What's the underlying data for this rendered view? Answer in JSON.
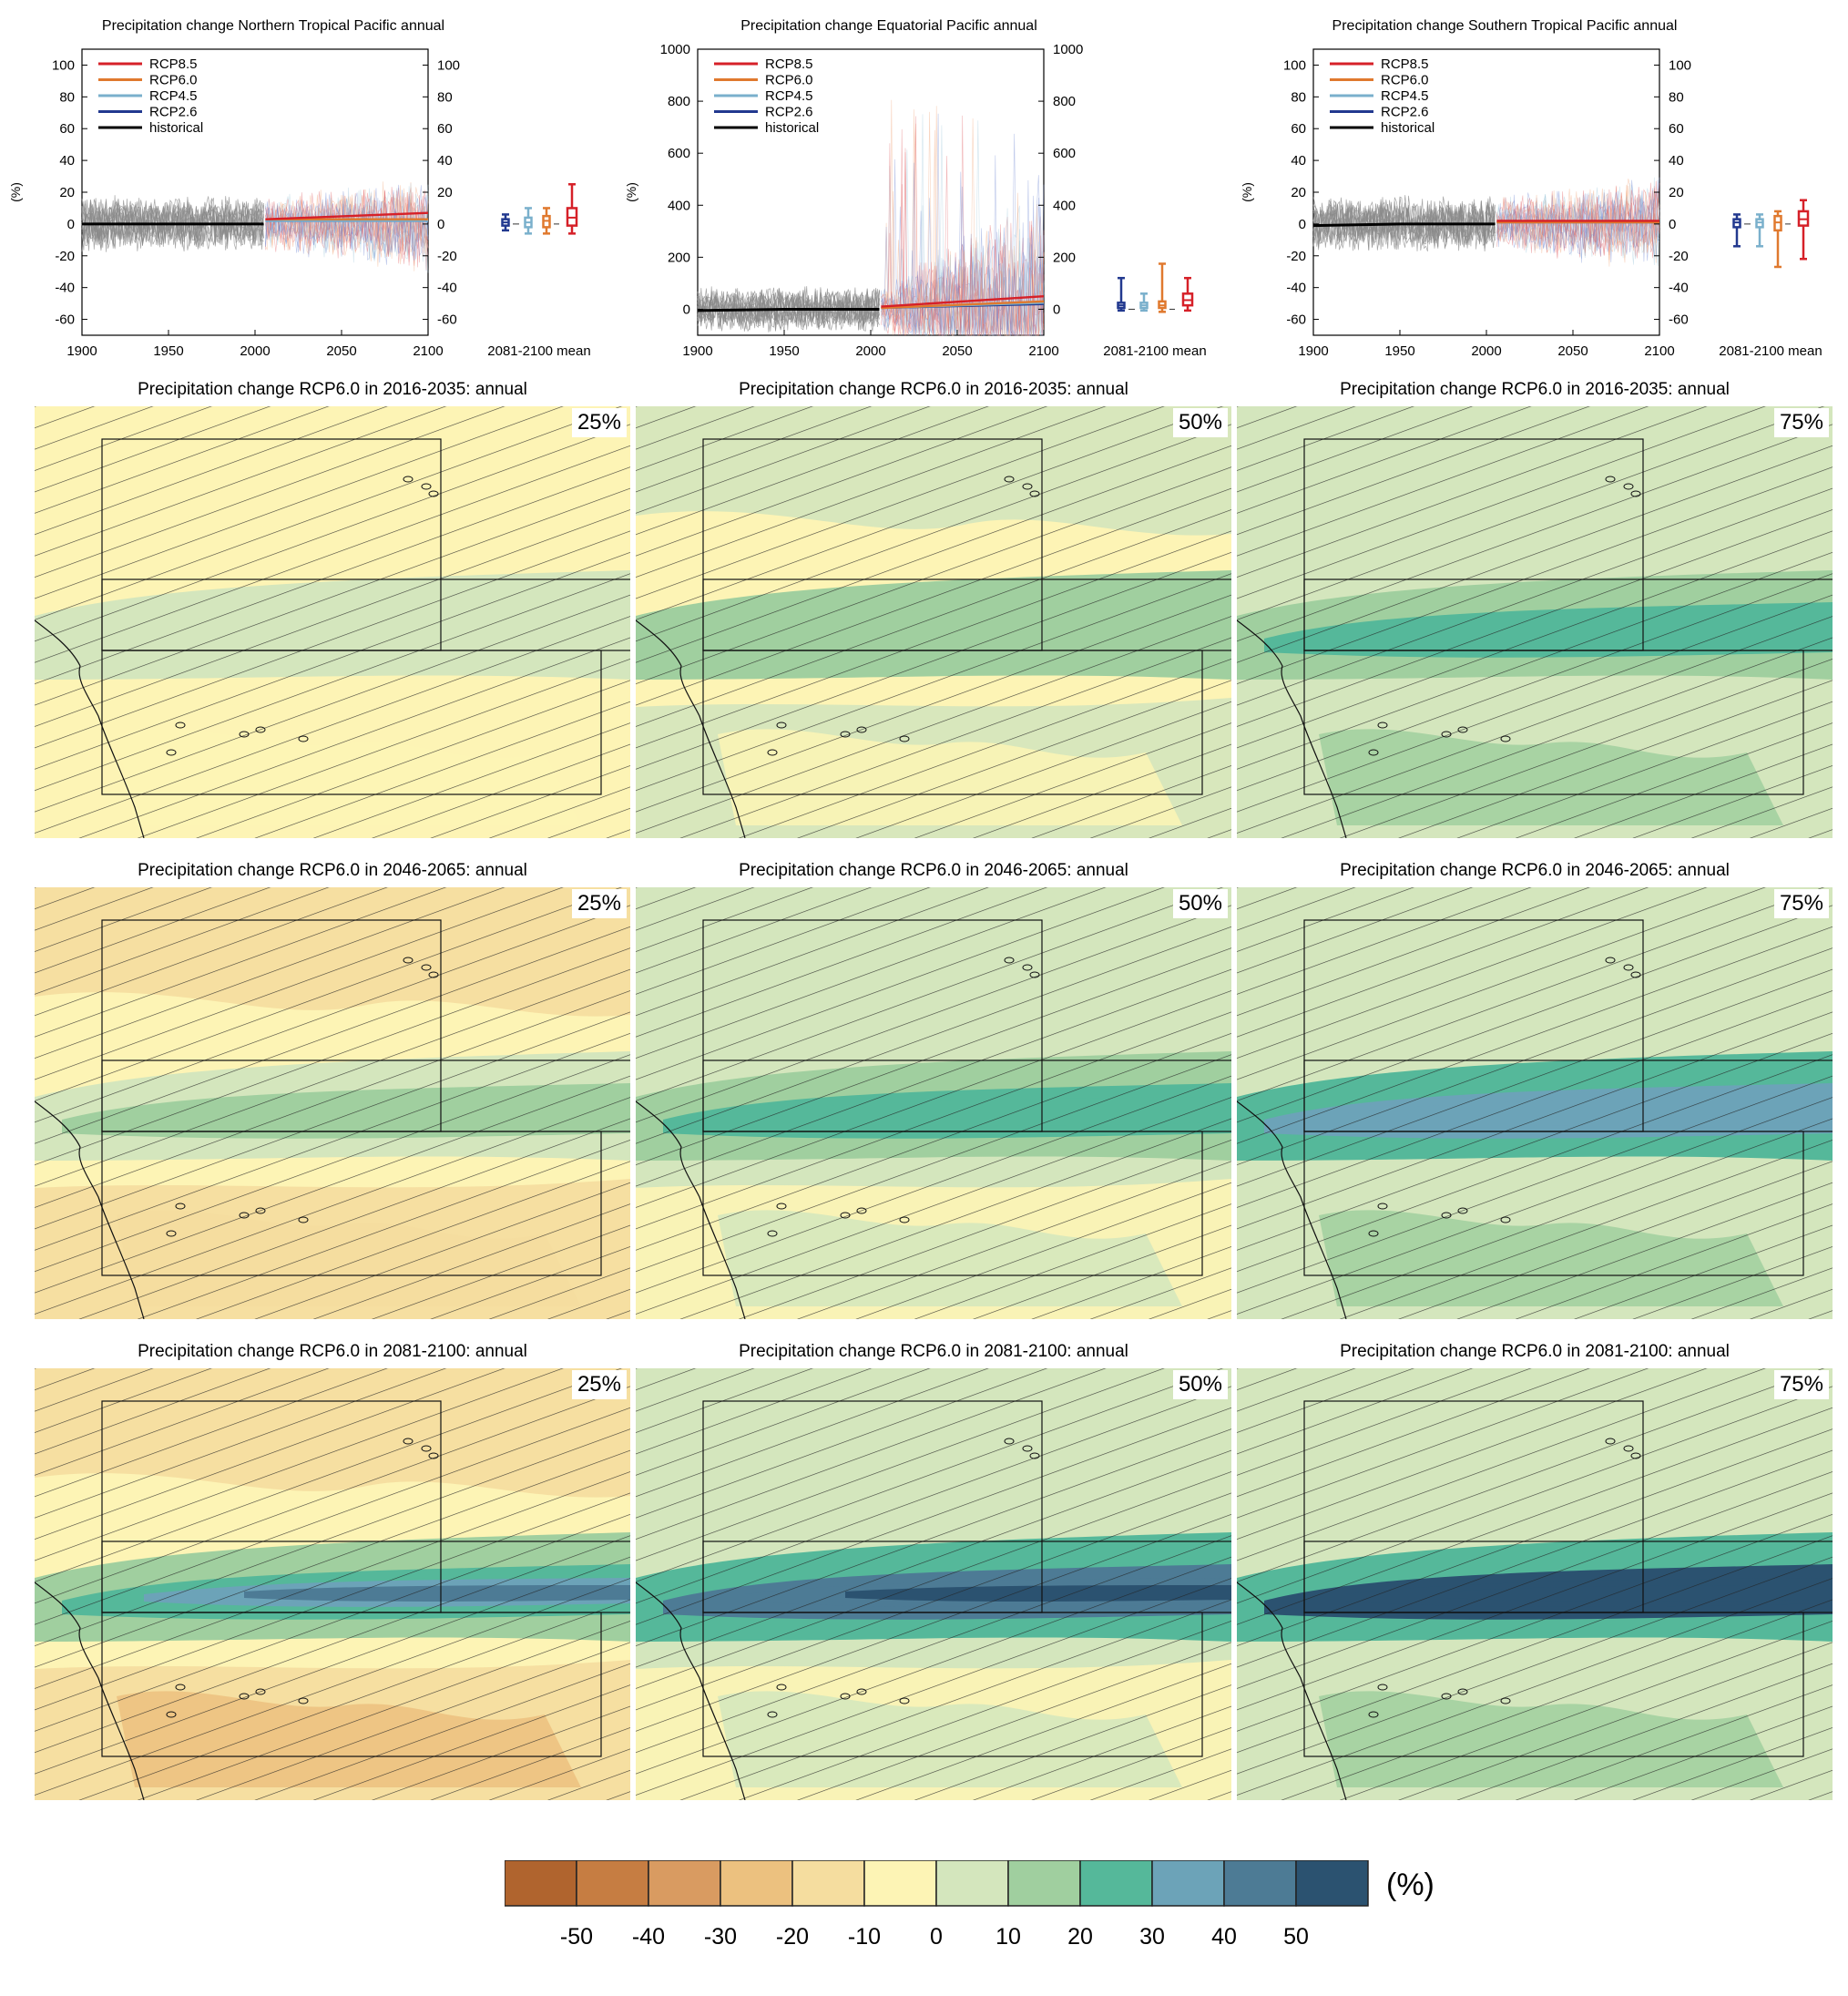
{
  "colorbar": {
    "unit": "(%)",
    "ticks": [
      "-50",
      "-40",
      "-30",
      "-20",
      "-10",
      "0",
      "10",
      "20",
      "30",
      "40",
      "50"
    ],
    "colors": [
      "#b0642e",
      "#c67d42",
      "#d99b61",
      "#ecc17f",
      "#f5dd9f",
      "#fdf4b5",
      "#d4e6bd",
      "#a0cf9f",
      "#55b89a",
      "#6ca3b8",
      "#4d7b95",
      "#2b5270"
    ]
  },
  "timeseries": [
    {
      "title": "Precipitation change Northern Tropical Pacific annual",
      "ylabel": "(%)",
      "yticks": [
        "100",
        "80",
        "60",
        "40",
        "20",
        "0",
        "-20",
        "-40",
        "-60"
      ],
      "xticks": [
        "1900",
        "1950",
        "2000",
        "2050",
        "2100"
      ],
      "boxlabel": "2081-2100 mean",
      "legend": [
        "RCP8.5",
        "RCP6.0",
        "RCP4.5",
        "RCP2.6",
        "historical"
      ]
    },
    {
      "title": "Precipitation change Equatorial Pacific annual",
      "ylabel": "(%)",
      "yticks": [
        "1000",
        "800",
        "600",
        "400",
        "200",
        "0"
      ],
      "xticks": [
        "1900",
        "1950",
        "2000",
        "2050",
        "2100"
      ],
      "boxlabel": "2081-2100 mean",
      "legend": [
        "RCP8.5",
        "RCP6.0",
        "RCP4.5",
        "RCP2.6",
        "historical"
      ]
    },
    {
      "title": "Precipitation change Southern Tropical Pacific annual",
      "ylabel": "(%)",
      "yticks": [
        "100",
        "80",
        "60",
        "40",
        "20",
        "0",
        "-20",
        "-40",
        "-60"
      ],
      "xticks": [
        "1900",
        "1950",
        "2000",
        "2050",
        "2100"
      ],
      "boxlabel": "2081-2100 mean",
      "legend": [
        "RCP8.5",
        "RCP6.0",
        "RCP4.5",
        "RCP2.6",
        "historical"
      ]
    }
  ],
  "maps": [
    [
      {
        "title": "Precipitation change RCP6.0 in 2016-2035: annual",
        "pct": "25%"
      },
      {
        "title": "Precipitation change RCP6.0 in 2016-2035: annual",
        "pct": "50%"
      },
      {
        "title": "Precipitation change RCP6.0 in 2016-2035: annual",
        "pct": "75%"
      }
    ],
    [
      {
        "title": "Precipitation change RCP6.0 in 2046-2065: annual",
        "pct": "25%"
      },
      {
        "title": "Precipitation change RCP6.0 in 2046-2065: annual",
        "pct": "50%"
      },
      {
        "title": "Precipitation change RCP6.0 in 2046-2065: annual",
        "pct": "75%"
      }
    ],
    [
      {
        "title": "Precipitation change RCP6.0 in 2081-2100: annual",
        "pct": "25%"
      },
      {
        "title": "Precipitation change RCP6.0 in 2081-2100: annual",
        "pct": "50%"
      },
      {
        "title": "Precipitation change RCP6.0 in 2081-2100: annual",
        "pct": "75%"
      }
    ]
  ],
  "chart_data": [
    {
      "type": "line",
      "title": "Precipitation change Northern Tropical Pacific annual",
      "ylabel": "(%)",
      "xlim": [
        1900,
        2100
      ],
      "ylim": [
        -70,
        110
      ],
      "series": [
        {
          "name": "historical",
          "x": [
            1900,
            1950,
            2005
          ],
          "y": [
            0,
            0,
            0
          ],
          "color": "#000000"
        },
        {
          "name": "RCP2.6",
          "x": [
            2006,
            2100
          ],
          "y": [
            2,
            2
          ],
          "color": "#22398f"
        },
        {
          "name": "RCP4.5",
          "x": [
            2006,
            2100
          ],
          "y": [
            2,
            2
          ],
          "color": "#7ab0cc"
        },
        {
          "name": "RCP6.0",
          "x": [
            2006,
            2100
          ],
          "y": [
            3,
            3
          ],
          "color": "#e0792e"
        },
        {
          "name": "RCP8.5",
          "x": [
            2006,
            2100
          ],
          "y": [
            3,
            7
          ],
          "color": "#d62028"
        }
      ],
      "boxes_2081_2100_mean": [
        {
          "name": "RCP2.6",
          "min": -4,
          "q1": -1,
          "median": 1,
          "q3": 3,
          "max": 6
        },
        {
          "name": "RCP4.5",
          "min": -6,
          "q1": -2,
          "median": 1,
          "q3": 4,
          "max": 10
        },
        {
          "name": "RCP6.0",
          "min": -6,
          "q1": -2,
          "median": 2,
          "q3": 5,
          "max": 10
        },
        {
          "name": "RCP8.5",
          "min": -6,
          "q1": -1,
          "median": 4,
          "q3": 10,
          "max": 25
        }
      ]
    },
    {
      "type": "line",
      "title": "Precipitation change Equatorial Pacific annual",
      "ylabel": "(%)",
      "xlim": [
        1900,
        2100
      ],
      "ylim": [
        -100,
        1000
      ],
      "series": [
        {
          "name": "historical",
          "x": [
            1900,
            1950,
            2005
          ],
          "y": [
            -5,
            0,
            0
          ],
          "color": "#000000"
        },
        {
          "name": "RCP2.6",
          "x": [
            2006,
            2100
          ],
          "y": [
            5,
            20
          ],
          "color": "#22398f"
        },
        {
          "name": "RCP4.5",
          "x": [
            2006,
            2100
          ],
          "y": [
            5,
            25
          ],
          "color": "#7ab0cc"
        },
        {
          "name": "RCP6.0",
          "x": [
            2006,
            2100
          ],
          "y": [
            5,
            30
          ],
          "color": "#e0792e"
        },
        {
          "name": "RCP8.5",
          "x": [
            2006,
            2100
          ],
          "y": [
            10,
            50
          ],
          "color": "#d62028"
        }
      ],
      "boxes_2081_2100_mean": [
        {
          "name": "RCP2.6",
          "min": -5,
          "q1": 5,
          "median": 15,
          "q3": 25,
          "max": 120
        },
        {
          "name": "RCP4.5",
          "min": -5,
          "q1": 5,
          "median": 15,
          "q3": 25,
          "max": 60
        },
        {
          "name": "RCP6.0",
          "min": -10,
          "q1": 5,
          "median": 15,
          "q3": 30,
          "max": 175
        },
        {
          "name": "RCP8.5",
          "min": -5,
          "q1": 15,
          "median": 35,
          "q3": 60,
          "max": 120
        }
      ]
    },
    {
      "type": "line",
      "title": "Precipitation change Southern Tropical Pacific annual",
      "ylabel": "(%)",
      "xlim": [
        1900,
        2100
      ],
      "ylim": [
        -70,
        110
      ],
      "series": [
        {
          "name": "historical",
          "x": [
            1900,
            1950,
            2005
          ],
          "y": [
            -1,
            0,
            0
          ],
          "color": "#000000"
        },
        {
          "name": "RCP2.6",
          "x": [
            2006,
            2100
          ],
          "y": [
            1,
            1
          ],
          "color": "#22398f"
        },
        {
          "name": "RCP4.5",
          "x": [
            2006,
            2100
          ],
          "y": [
            1,
            1
          ],
          "color": "#7ab0cc"
        },
        {
          "name": "RCP6.0",
          "x": [
            2006,
            2100
          ],
          "y": [
            1,
            1
          ],
          "color": "#e0792e"
        },
        {
          "name": "RCP8.5",
          "x": [
            2006,
            2100
          ],
          "y": [
            2,
            2
          ],
          "color": "#d62028"
        }
      ],
      "boxes_2081_2100_mean": [
        {
          "name": "RCP2.6",
          "min": -14,
          "q1": -2,
          "median": 1,
          "q3": 3,
          "max": 6
        },
        {
          "name": "RCP4.5",
          "min": -14,
          "q1": -2,
          "median": 1,
          "q3": 3,
          "max": 6
        },
        {
          "name": "RCP6.0",
          "min": -27,
          "q1": -4,
          "median": 1,
          "q3": 5,
          "max": 8
        },
        {
          "name": "RCP8.5",
          "min": -22,
          "q1": -1,
          "median": 3,
          "q3": 8,
          "max": 15
        }
      ]
    }
  ]
}
